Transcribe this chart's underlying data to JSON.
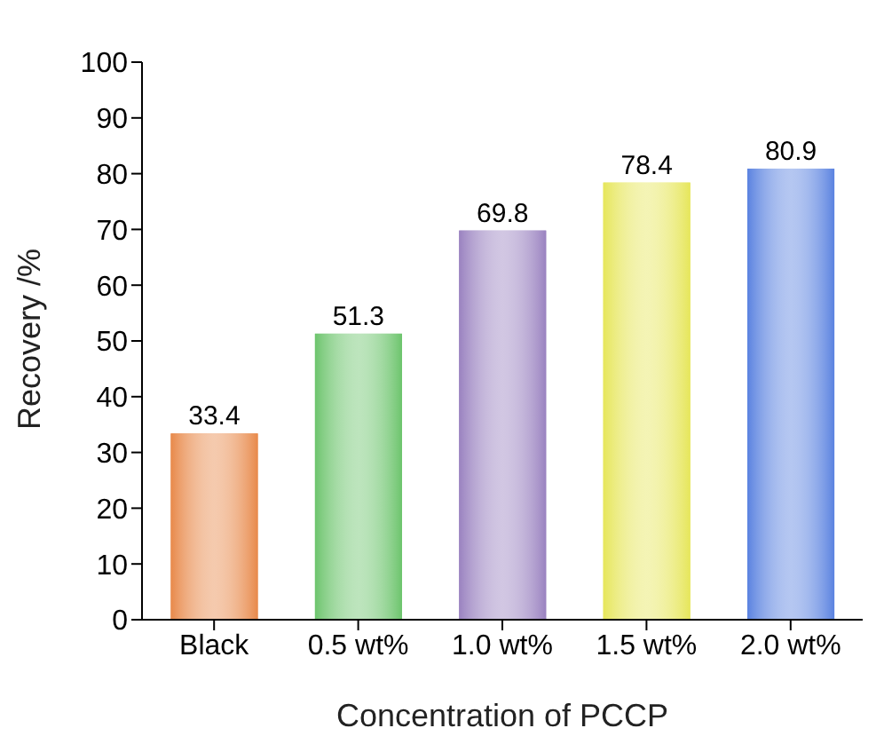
{
  "chart_data": {
    "type": "bar",
    "xlabel": "Concentration of PCCP",
    "ylabel": "Recovery /%",
    "categories": [
      "Black",
      "0.5 wt%",
      "1.0 wt%",
      "1.5 wt%",
      "2.0 wt%"
    ],
    "values": [
      33.4,
      51.3,
      69.8,
      78.4,
      80.9
    ],
    "colors": [
      "#e8894a",
      "#6cc46c",
      "#9a82c0",
      "#e6e65a",
      "#5a82e0"
    ],
    "ylim": [
      0,
      100
    ],
    "yticks": [
      0,
      10,
      20,
      30,
      40,
      50,
      60,
      70,
      80,
      90,
      100
    ],
    "data_labels": true,
    "grid": false
  }
}
